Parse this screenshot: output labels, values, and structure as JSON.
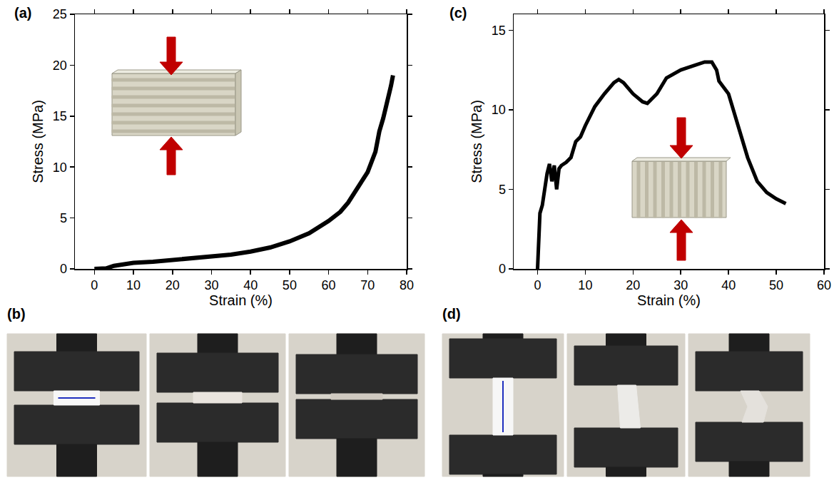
{
  "chart_data": [
    {
      "type": "line",
      "label": "(a)",
      "x_label": "Strain (%)",
      "y_label": "Stress (MPa)",
      "color": "#000000",
      "x": [
        0,
        2,
        3,
        5,
        8,
        10,
        15,
        20,
        25,
        30,
        35,
        40,
        45,
        50,
        55,
        60,
        63,
        65,
        68,
        70,
        72,
        73,
        74,
        75,
        75.5,
        76,
        76.5
      ],
      "values": [
        0,
        0,
        0.05,
        0.3,
        0.5,
        0.6,
        0.7,
        0.85,
        1.0,
        1.15,
        1.4,
        1.7,
        2.1,
        2.7,
        3.5,
        4.7,
        5.6,
        6.5,
        8.2,
        9.5,
        11.5,
        13.5,
        14.8,
        16.3,
        17.0,
        18.0,
        19.0
      ],
      "xlim": [
        -5,
        80
      ],
      "xticks": [
        0,
        10,
        20,
        30,
        40,
        50,
        60,
        70,
        80
      ],
      "ylim": [
        0,
        25
      ],
      "yticks": [
        0,
        5,
        10,
        15,
        20,
        25
      ]
    },
    {
      "type": "line",
      "label": "(c)",
      "x_label": "Strain (%)",
      "y_label": "Stress (MPa)",
      "color": "#000000",
      "x": [
        0,
        0.5,
        1,
        1.5,
        2,
        2.5,
        3,
        3.5,
        4,
        4.5,
        5,
        6,
        7,
        8,
        9,
        10,
        12,
        14,
        16,
        17,
        18,
        20,
        22,
        23,
        25,
        27,
        30,
        33,
        35,
        36.5,
        37.5,
        38,
        40,
        42,
        44,
        46,
        48,
        50,
        52
      ],
      "values": [
        0,
        3.5,
        4.0,
        5.0,
        6.0,
        6.6,
        5.5,
        6.5,
        5.0,
        6.3,
        6.5,
        6.7,
        7.0,
        8.0,
        8.3,
        9.0,
        10.2,
        11.0,
        11.7,
        11.9,
        11.7,
        11.0,
        10.5,
        10.4,
        11.0,
        12.0,
        12.5,
        12.8,
        13.0,
        13.0,
        12.5,
        11.8,
        11.0,
        9.0,
        7.0,
        5.5,
        4.8,
        4.4,
        4.1
      ],
      "xlim": [
        -5,
        60
      ],
      "xticks": [
        0,
        10,
        20,
        30,
        40,
        50,
        60
      ],
      "ylim": [
        0,
        16
      ],
      "yticks": [
        0,
        5,
        10,
        15
      ]
    }
  ],
  "photo_panels": [
    {
      "label": "(b)"
    },
    {
      "label": "(d)"
    }
  ]
}
